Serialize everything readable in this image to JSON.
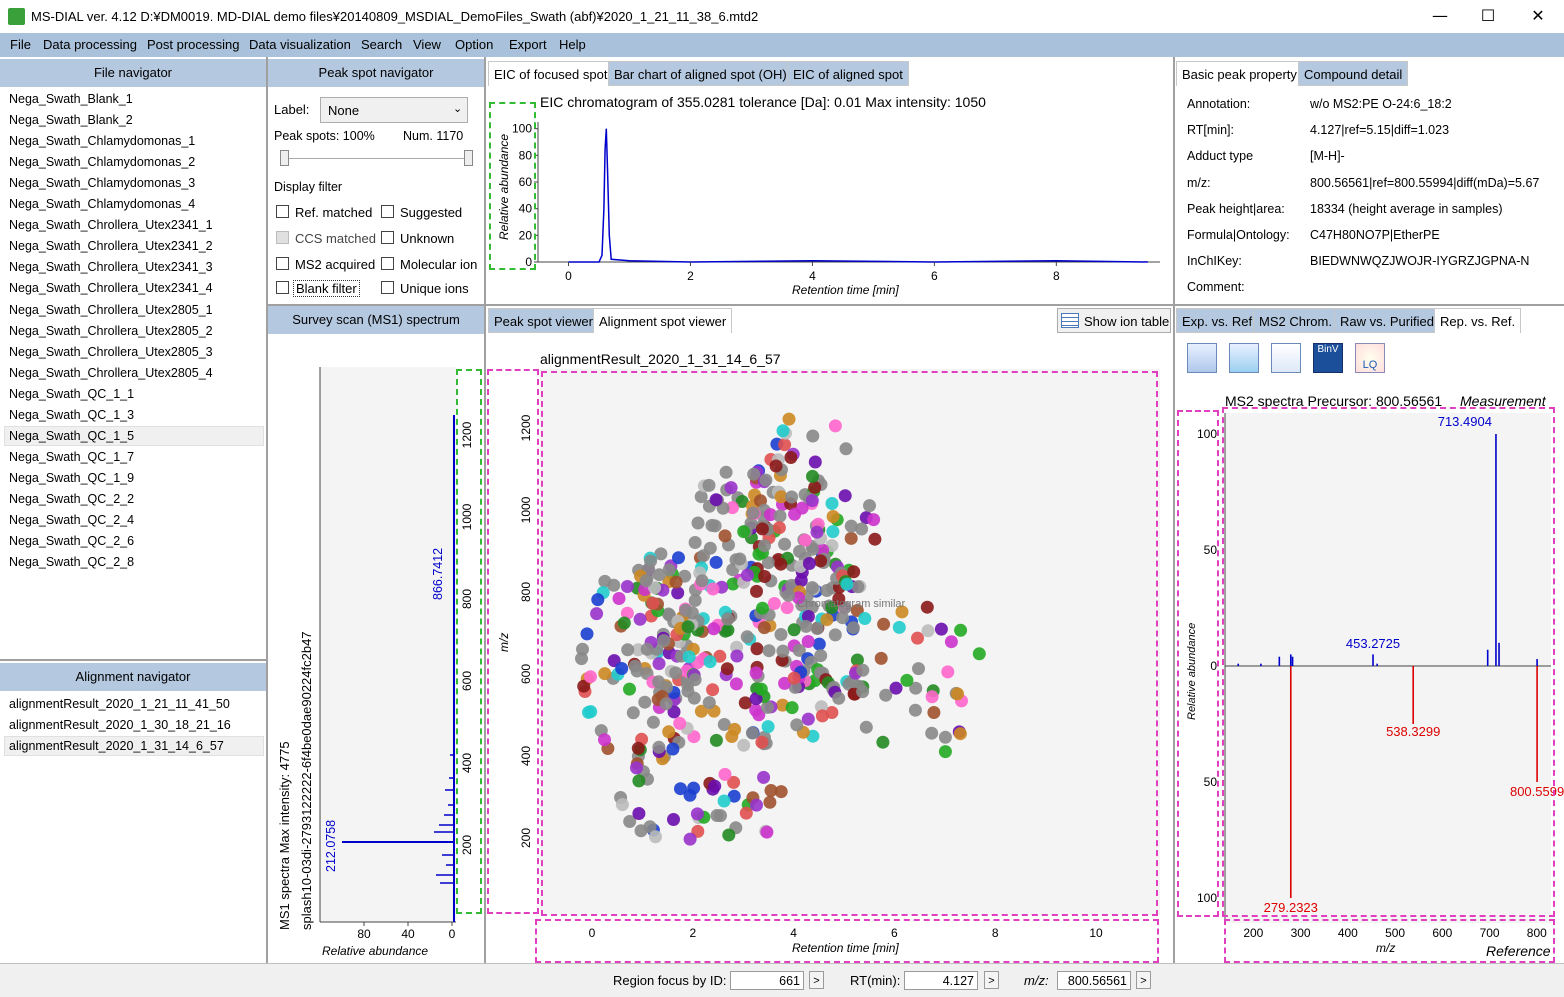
{
  "window": {
    "title": "MS-DIAL ver. 4.12 D:¥DM0019. MD-DIAL demo files¥20140809_MSDIAL_DemoFiles_Swath (abf)¥2020_1_21_11_38_6.mtd2",
    "minimize": "—",
    "maximize": "☐",
    "close": "✕"
  },
  "menu": [
    "File",
    "Data processing",
    "Post processing",
    "Data visualization",
    "Search",
    "View",
    "Option",
    "Export",
    "Help"
  ],
  "file_navigator": {
    "header": "File navigator",
    "files": [
      "Nega_Swath_Blank_1",
      "Nega_Swath_Blank_2",
      "Nega_Swath_Chlamydomonas_1",
      "Nega_Swath_Chlamydomonas_2",
      "Nega_Swath_Chlamydomonas_3",
      "Nega_Swath_Chlamydomonas_4",
      "Nega_Swath_Chrollera_Utex2341_1",
      "Nega_Swath_Chrollera_Utex2341_2",
      "Nega_Swath_Chrollera_Utex2341_3",
      "Nega_Swath_Chrollera_Utex2341_4",
      "Nega_Swath_Chrollera_Utex2805_1",
      "Nega_Swath_Chrollera_Utex2805_2",
      "Nega_Swath_Chrollera_Utex2805_3",
      "Nega_Swath_Chrollera_Utex2805_4",
      "Nega_Swath_QC_1_1",
      "Nega_Swath_QC_1_3",
      "Nega_Swath_QC_1_5",
      "Nega_Swath_QC_1_7",
      "Nega_Swath_QC_1_9",
      "Nega_Swath_QC_2_2",
      "Nega_Swath_QC_2_4",
      "Nega_Swath_QC_2_6",
      "Nega_Swath_QC_2_8"
    ],
    "selected": "Nega_Swath_QC_1_5"
  },
  "alignment_navigator": {
    "header": "Alignment navigator",
    "items": [
      "alignmentResult_2020_1_21_11_41_50",
      "alignmentResult_2020_1_30_18_21_16",
      "alignmentResult_2020_1_31_14_6_57"
    ],
    "selected": "alignmentResult_2020_1_31_14_6_57"
  },
  "peak_spot_navigator": {
    "header": "Peak spot navigator",
    "label_caption": "Label:",
    "label_value": "None",
    "peak_spots": "Peak spots: 100%",
    "num": "Num. 1170",
    "display_filter": "Display filter",
    "filters": [
      {
        "label": "Ref. matched",
        "checked": false
      },
      {
        "label": "Suggested",
        "checked": false
      },
      {
        "label": "CCS matched",
        "checked": false,
        "disabled": true
      },
      {
        "label": "Unknown",
        "checked": false
      },
      {
        "label": "MS2 acquired",
        "checked": false
      },
      {
        "label": "Molecular ion",
        "checked": false
      },
      {
        "label": "Blank filter",
        "checked": false
      },
      {
        "label": "Unique ions",
        "checked": false
      }
    ]
  },
  "survey_scan": {
    "header": "Survey scan (MS1) spectrum",
    "y_title": "MS1 spectra Max intensity: 4775",
    "y_subtitle": "splash10-03di-2793122222-6f4be0dae90224fc2b47",
    "x_label": "Relative abundance",
    "ticks_abundance": [
      "80",
      "40",
      "0"
    ],
    "ticks_mz": [
      "200",
      "400",
      "600",
      "800",
      "1000",
      "1200"
    ],
    "peak_labels": [
      "212.0758",
      "866.7412"
    ]
  },
  "eic_tabs": [
    "EIC of focused spot",
    "Bar chart of aligned spot (OH)",
    "EIC of aligned spot"
  ],
  "eic": {
    "title": "EIC chromatogram of 355.0281 tolerance [Da]: 0.01  Max intensity: 1050",
    "y_label": "Relative abundance",
    "x_label": "Retention time [min]",
    "y_ticks": [
      "100",
      "80",
      "60",
      "40",
      "20",
      "0"
    ],
    "x_ticks": [
      "0",
      "2",
      "4",
      "6",
      "8"
    ],
    "chart_data": {
      "type": "line",
      "x": [
        0.0,
        0.5,
        0.55,
        0.58,
        0.6,
        0.62,
        0.64,
        0.67,
        0.7,
        1.0,
        2.0,
        4.0,
        6.0,
        8.0,
        9.5
      ],
      "y": [
        0,
        0,
        5,
        40,
        85,
        100,
        70,
        20,
        2,
        1,
        0,
        1,
        0,
        1,
        0
      ],
      "xlim": [
        -0.5,
        9.7
      ],
      "ylim": [
        0,
        105
      ]
    }
  },
  "peak_tabs": [
    "Peak spot viewer",
    "Alignment spot viewer"
  ],
  "show_ion_table": "Show ion table",
  "scatter": {
    "title": "alignmentResult_2020_1_31_14_6_57",
    "y_label": "m/z",
    "x_label": "Retention time [min]",
    "y_ticks": [
      "200",
      "400",
      "600",
      "800",
      "1000",
      "1200"
    ],
    "x_ticks": [
      "0",
      "2",
      "4",
      "6",
      "8",
      "10"
    ],
    "annotation": "Chromatogram similar"
  },
  "property_tabs": [
    "Basic peak property",
    "Compound detail"
  ],
  "properties": [
    {
      "key": "Annotation:",
      "value": "w/o MS2:PE O-24:6_18:2"
    },
    {
      "key": "RT[min]:",
      "value": "4.127|ref=5.15|diff=1.023"
    },
    {
      "key": "Adduct type",
      "value": "[M-H]-"
    },
    {
      "key": "m/z:",
      "value": "800.56561|ref=800.55994|diff(mDa)=5.67"
    },
    {
      "key": "Peak height|area:",
      "value": "18334 (height average in samples)"
    },
    {
      "key": "Formula|Ontology:",
      "value": "C47H80NO7P|EtherPE"
    },
    {
      "key": "InChIKey:",
      "value": "BIEDWNWQZJWOJR-IYGRZJGPNA-N"
    },
    {
      "key": "Comment:",
      "value": ""
    }
  ],
  "ms2_tabs": [
    "Exp. vs. Ref.",
    "MS2 Chrom.",
    "Raw vs. Purified",
    "Rep. vs. Ref."
  ],
  "ms2": {
    "title": "MS2 spectra Precursor: 800.56561",
    "measurement": "Measurement",
    "reference": "Reference",
    "y_label": "Relative abundance",
    "x_label": "m/z",
    "y_ticks": [
      "100",
      "50",
      "0",
      "50",
      "100"
    ],
    "x_ticks": [
      "200",
      "300",
      "400",
      "500",
      "600",
      "700",
      "800"
    ],
    "chart_data": {
      "type": "bar",
      "xlim": [
        140,
        830
      ],
      "measurement": [
        {
          "mz": 168,
          "value": 1
        },
        {
          "mz": 216,
          "value": 1
        },
        {
          "mz": 255,
          "value": 4
        },
        {
          "mz": 279.23,
          "value": 5
        },
        {
          "mz": 283,
          "value": 4
        },
        {
          "mz": 453.2725,
          "value": 5
        },
        {
          "mz": 462,
          "value": 1
        },
        {
          "mz": 696,
          "value": 7
        },
        {
          "mz": 713.4904,
          "value": 100
        },
        {
          "mz": 720,
          "value": 10
        },
        {
          "mz": 800.56,
          "value": 3
        }
      ],
      "reference": [
        {
          "mz": 279.2323,
          "value": 100
        },
        {
          "mz": 538.3299,
          "value": 25
        },
        {
          "mz": 800.5599,
          "value": 50
        }
      ],
      "labels_measurement": [
        "713.4904",
        "453.2725"
      ],
      "labels_reference": [
        "279.2323",
        "538.3299",
        "800.5599"
      ]
    }
  },
  "status": {
    "region_focus_label": "Region focus by ID:",
    "region_focus_value": "661",
    "rt_label": "RT(min):",
    "rt_value": "4.127",
    "mz_label": "m/z:",
    "mz_value": "800.56561",
    "go": ">"
  },
  "colors": {
    "panel_header": "#b4c8e0",
    "menu_bar": "#a9c1da",
    "eic_line": "#0000cc",
    "ms2_measure": "#0000cc",
    "ms2_reference": "#dd0000",
    "highlight_dash_pink": "#e040c0",
    "highlight_dash_green": "#33bb33"
  }
}
